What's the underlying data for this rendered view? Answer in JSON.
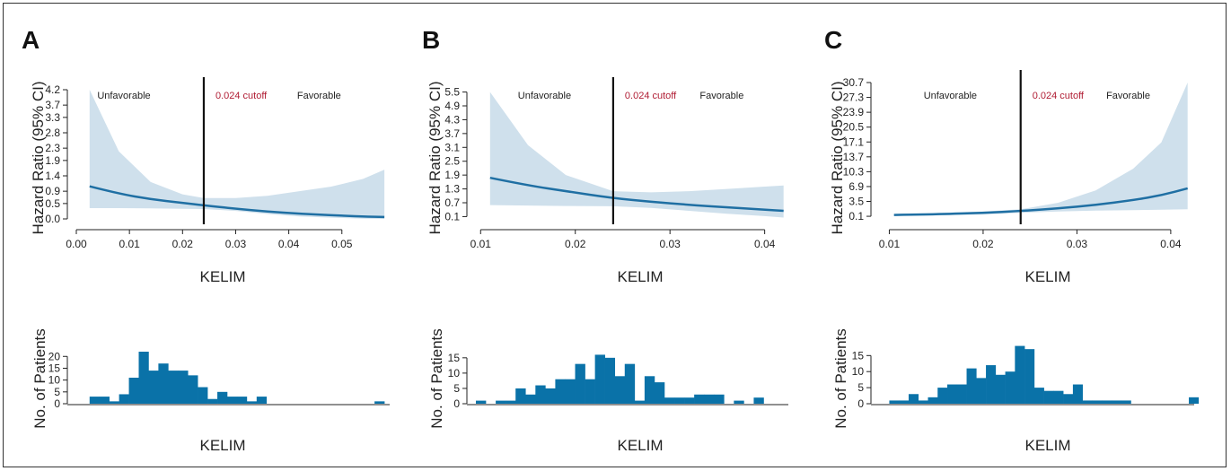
{
  "colors": {
    "band": "#cfe0ec",
    "curve": "#1f6fa3",
    "bar": "#0a72a8",
    "cutoff_line": "#111111",
    "cutoff_text": "#b01c33"
  },
  "chart_data": [
    {
      "type": "line",
      "panel": "A",
      "title": "",
      "xlabel": "KELIM",
      "ylabel": "Hazard Ratio (95% CI)",
      "x_ticks": [
        "0.00",
        "0.01",
        "0.02",
        "0.03",
        "0.04",
        "0.05"
      ],
      "x_tick_values": [
        0.0,
        0.01,
        0.02,
        0.03,
        0.04,
        0.05
      ],
      "y_ticks": [
        "0.0",
        "0.5",
        "0.9",
        "1.4",
        "1.9",
        "2.3",
        "2.8",
        "3.3",
        "3.7",
        "4.2"
      ],
      "xlim": [
        0.0,
        0.059
      ],
      "ylim": [
        0.0,
        4.2
      ],
      "cutoff": 0.024,
      "cutoff_label": "0.024 cutoff",
      "left_label": "Unfavorable",
      "right_label": "Favorable",
      "series": [
        {
          "x": [
            0.0025,
            0.008,
            0.014,
            0.02,
            0.024,
            0.03,
            0.036,
            0.042,
            0.048,
            0.054,
            0.058
          ],
          "hr": [
            1.06,
            0.82,
            0.64,
            0.52,
            0.44,
            0.33,
            0.24,
            0.17,
            0.12,
            0.08,
            0.06
          ],
          "lower": [
            0.35,
            0.35,
            0.34,
            0.33,
            0.32,
            0.26,
            0.16,
            0.08,
            0.04,
            0.01,
            0.0
          ],
          "upper": [
            4.2,
            2.2,
            1.2,
            0.8,
            0.68,
            0.68,
            0.75,
            0.9,
            1.05,
            1.3,
            1.6
          ]
        }
      ],
      "histogram": {
        "ylabel": "No. of Patients",
        "xlabel": "KELIM",
        "y_ticks": [
          "0",
          "5",
          "10",
          "15",
          "20"
        ],
        "ymax": 22,
        "xlim": [
          0.0,
          0.059
        ],
        "bin_start": 0.0025,
        "bin_width": 0.00185,
        "counts": [
          3,
          3,
          1,
          4,
          11,
          22,
          14,
          17,
          14,
          14,
          12,
          7,
          2,
          5,
          3,
          3,
          1,
          3,
          0,
          0,
          0,
          0,
          0,
          0,
          0,
          0,
          0,
          0,
          0,
          1
        ]
      }
    },
    {
      "type": "line",
      "panel": "B",
      "title": "",
      "xlabel": "KELIM",
      "ylabel": "Hazard Ratio (95% CI)",
      "x_ticks": [
        "0.01",
        "0.02",
        "0.03",
        "0.04"
      ],
      "x_tick_values": [
        0.01,
        0.02,
        0.03,
        0.04
      ],
      "y_ticks": [
        "0.1",
        "0.7",
        "1.3",
        "1.9",
        "2.5",
        "3.1",
        "3.7",
        "4.3",
        "4.9",
        "5.5"
      ],
      "xlim": [
        0.0095,
        0.0425
      ],
      "ylim": [
        0.0,
        5.6
      ],
      "cutoff": 0.024,
      "cutoff_label": "0.024 cutoff",
      "left_label": "Unfavorable",
      "right_label": "Favorable",
      "series": [
        {
          "x": [
            0.011,
            0.015,
            0.019,
            0.024,
            0.028,
            0.032,
            0.036,
            0.04,
            0.042
          ],
          "hr": [
            1.78,
            1.45,
            1.2,
            0.9,
            0.74,
            0.61,
            0.5,
            0.4,
            0.35
          ],
          "lower": [
            0.6,
            0.58,
            0.56,
            0.55,
            0.48,
            0.35,
            0.22,
            0.12,
            0.06
          ],
          "upper": [
            5.5,
            3.2,
            1.9,
            1.2,
            1.15,
            1.2,
            1.3,
            1.4,
            1.45
          ]
        }
      ],
      "histogram": {
        "ylabel": "No. of Patients",
        "xlabel": "KELIM",
        "y_ticks": [
          "0",
          "5",
          "10",
          "15"
        ],
        "ymax": 17,
        "xlim": [
          0.0095,
          0.0425
        ],
        "bin_start": 0.0095,
        "bin_width": 0.001048,
        "counts": [
          1,
          0,
          1,
          1,
          5,
          3,
          6,
          5,
          8,
          8,
          13,
          8,
          16,
          15,
          9,
          13,
          1,
          9,
          7,
          2,
          2,
          2,
          3,
          3,
          3,
          0,
          1,
          0,
          2,
          0,
          0
        ]
      }
    },
    {
      "type": "line",
      "panel": "C",
      "title": "",
      "xlabel": "KELIM",
      "ylabel": "Hazard Ratio (95% CI)",
      "x_ticks": [
        "0.01",
        "0.02",
        "0.03",
        "0.04"
      ],
      "x_tick_values": [
        0.01,
        0.02,
        0.03,
        0.04
      ],
      "y_ticks": [
        "0.1",
        "3.5",
        "6.9",
        "10.3",
        "13.7",
        "17.1",
        "20.5",
        "23.9",
        "27.3",
        "30.7"
      ],
      "xlim": [
        0.009,
        0.0425
      ],
      "ylim": [
        -0.5,
        30.7
      ],
      "cutoff": 0.024,
      "cutoff_label": "0.024 cutoff",
      "left_label": "Unfavorable",
      "right_label": "Favorable",
      "series": [
        {
          "x": [
            0.0105,
            0.015,
            0.02,
            0.024,
            0.028,
            0.032,
            0.036,
            0.039,
            0.0418
          ],
          "hr": [
            0.4,
            0.55,
            0.9,
            1.3,
            1.9,
            2.7,
            3.8,
            4.9,
            6.5
          ],
          "lower": [
            0.2,
            0.3,
            0.5,
            0.9,
            1.2,
            1.4,
            1.5,
            1.6,
            1.7
          ],
          "upper": [
            0.7,
            0.85,
            1.2,
            1.7,
            3.2,
            6.0,
            11.0,
            17.0,
            30.7
          ]
        }
      ],
      "histogram": {
        "ylabel": "No. of Patients",
        "xlabel": "KELIM",
        "y_ticks": [
          "0",
          "5",
          "10",
          "15"
        ],
        "ymax": 19,
        "xlim": [
          0.009,
          0.0425
        ],
        "bin_start": 0.01,
        "bin_width": 0.00103,
        "counts": [
          1,
          1,
          3,
          1,
          2,
          5,
          6,
          6,
          11,
          8,
          12,
          9,
          10,
          18,
          17,
          5,
          4,
          4,
          3,
          6,
          1,
          1,
          1,
          1,
          1,
          0,
          0,
          0,
          0,
          0,
          0,
          2
        ]
      }
    }
  ],
  "panels": [
    {
      "label": "A"
    },
    {
      "label": "B"
    },
    {
      "label": "C"
    }
  ]
}
